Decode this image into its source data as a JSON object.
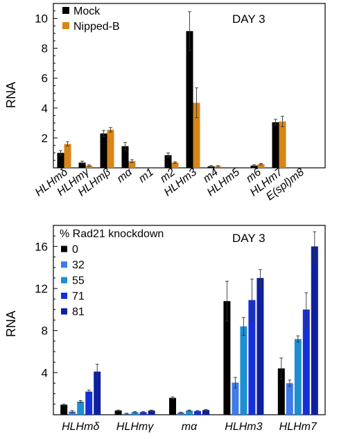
{
  "chart_data": [
    {
      "type": "bar",
      "annotation": "DAY 3",
      "ylabel": "RNA",
      "ylim": [
        0,
        11
      ],
      "yticks": [
        2,
        4,
        6,
        8,
        10
      ],
      "categories": [
        "HLHmδ",
        "HLHmγ",
        "HLHmβ",
        "mα",
        "m1",
        "m2",
        "HLHm3",
        "m4",
        "HLHm5",
        "m6",
        "HLHm7",
        "E(spl)m8"
      ],
      "legend_position": "top-left",
      "series": [
        {
          "name": "Mock",
          "color": "#000000",
          "values": [
            1.0,
            0.35,
            2.3,
            1.45,
            0.0,
            0.85,
            9.15,
            0.1,
            0.0,
            0.15,
            3.05,
            0.0
          ],
          "errors": [
            0.15,
            0.1,
            0.2,
            0.25,
            0.0,
            0.15,
            1.3,
            0.05,
            0.0,
            0.05,
            0.2,
            0.0
          ]
        },
        {
          "name": "Nipped-B",
          "color": "#d98517",
          "values": [
            1.6,
            0.15,
            2.55,
            0.45,
            0.0,
            0.35,
            4.35,
            0.1,
            0.0,
            0.25,
            3.1,
            0.0
          ],
          "errors": [
            0.15,
            0.05,
            0.15,
            0.1,
            0.0,
            0.05,
            1.0,
            0.05,
            0.0,
            0.05,
            0.35,
            0.0
          ]
        }
      ]
    },
    {
      "type": "bar",
      "annotation": "DAY 3",
      "ylabel": "RNA",
      "ylim": [
        0,
        18
      ],
      "yticks": [
        4,
        8,
        12,
        16
      ],
      "categories": [
        "HLHmδ",
        "HLHmγ",
        "mα",
        "HLHm3",
        "HLHm7"
      ],
      "legend_title": "% Rad21 knockdown",
      "legend_position": "top-left",
      "series": [
        {
          "name": "0",
          "color": "#000000",
          "values": [
            0.95,
            0.4,
            1.6,
            10.8,
            4.4
          ],
          "errors": [
            0.05,
            0.05,
            0.1,
            1.9,
            1.0
          ]
        },
        {
          "name": "32",
          "color": "#3f7ae8",
          "values": [
            0.3,
            0.1,
            0.2,
            3.05,
            3.0
          ],
          "errors": [
            0.1,
            0.05,
            0.05,
            0.5,
            0.3
          ]
        },
        {
          "name": "55",
          "color": "#1e8fd0",
          "values": [
            1.25,
            0.25,
            0.4,
            8.4,
            7.2
          ],
          "errors": [
            0.1,
            0.05,
            0.05,
            0.85,
            0.3
          ]
        },
        {
          "name": "71",
          "color": "#1530d8",
          "values": [
            2.2,
            0.25,
            0.35,
            10.9,
            10.0
          ],
          "errors": [
            0.15,
            0.05,
            0.05,
            2.0,
            1.6
          ]
        },
        {
          "name": "81",
          "color": "#0e209e",
          "values": [
            4.1,
            0.4,
            0.45,
            13.0,
            16.0
          ],
          "errors": [
            0.7,
            0.05,
            0.05,
            0.8,
            1.4
          ]
        }
      ]
    }
  ]
}
